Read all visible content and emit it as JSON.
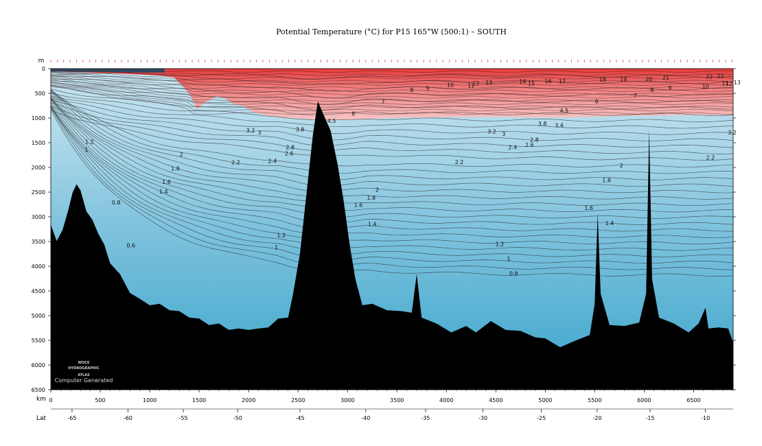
{
  "title": "Potential Temperature (°C) for P15 165°W (500:1) – SOUTH",
  "depth_unit": "m",
  "distance_unit": "km",
  "lat_label": "Lat",
  "watermark": {
    "line1": "WOCE",
    "line2": "HYDROGRAPHIC",
    "line3": "ATLAS",
    "line4": "Computer Generated"
  },
  "chart_data": {
    "type": "heatmap",
    "title": "Potential Temperature (°C) for P15 165°W (500:1) – SOUTH",
    "xlabel": "km",
    "ylabel": "m",
    "xlim": [
      0,
      6900
    ],
    "ylim": [
      6500,
      0
    ],
    "x_ticks": [
      0,
      500,
      1000,
      1500,
      2000,
      2500,
      3000,
      3500,
      4000,
      4500,
      5000,
      5500,
      6000,
      6500
    ],
    "y_ticks": [
      0,
      500,
      1000,
      1500,
      2000,
      2500,
      3000,
      3500,
      4000,
      4500,
      5000,
      5500,
      6000,
      6500
    ],
    "lat_ticks": [
      {
        "label": "-65",
        "km": 215
      },
      {
        "label": "-60",
        "km": 780
      },
      {
        "label": "-55",
        "km": 1340
      },
      {
        "label": "-50",
        "km": 1890
      },
      {
        "label": "-45",
        "km": 2520
      },
      {
        "label": "-40",
        "km": 3185
      },
      {
        "label": "-35",
        "km": 3790
      },
      {
        "label": "-30",
        "km": 4370
      },
      {
        "label": "-25",
        "km": 4960
      },
      {
        "label": "-20",
        "km": 5525
      },
      {
        "label": "-15",
        "km": 6060
      },
      {
        "label": "-10",
        "km": 6620
      }
    ],
    "color_scale": {
      "cold": "#3aa4cb",
      "mid": "#c9e6f2",
      "warm": "#f4b8b8",
      "hot": "#e53a3a",
      "bathymetry": "#000000"
    },
    "contour_labels": [
      {
        "text": "0.6",
        "km": 810,
        "depth": 3620
      },
      {
        "text": "0.8",
        "km": 660,
        "depth": 2750
      },
      {
        "text": "1",
        "km": 360,
        "depth": 1680
      },
      {
        "text": "1.2",
        "km": 390,
        "depth": 1520
      },
      {
        "text": "1.4",
        "km": 1140,
        "depth": 2530
      },
      {
        "text": "1.6",
        "km": 1170,
        "depth": 2330
      },
      {
        "text": "1.8",
        "km": 1260,
        "depth": 2060
      },
      {
        "text": "2",
        "km": 1320,
        "depth": 1780
      },
      {
        "text": "2.2",
        "km": 1870,
        "depth": 1940
      },
      {
        "text": "2.4",
        "km": 2240,
        "depth": 1910
      },
      {
        "text": "2.6",
        "km": 2410,
        "depth": 1760
      },
      {
        "text": "2.8",
        "km": 2420,
        "depth": 1630
      },
      {
        "text": "3",
        "km": 2110,
        "depth": 1330
      },
      {
        "text": "3.2",
        "km": 2020,
        "depth": 1290
      },
      {
        "text": "3.8",
        "km": 2520,
        "depth": 1270
      },
      {
        "text": "4.5",
        "km": 2840,
        "depth": 1100
      },
      {
        "text": "6",
        "km": 3060,
        "depth": 950
      },
      {
        "text": "7",
        "km": 3360,
        "depth": 710
      },
      {
        "text": "8",
        "km": 3650,
        "depth": 470
      },
      {
        "text": "9",
        "km": 3810,
        "depth": 440
      },
      {
        "text": "10",
        "km": 4040,
        "depth": 370
      },
      {
        "text": "11",
        "km": 4250,
        "depth": 380
      },
      {
        "text": "12",
        "km": 4300,
        "depth": 340
      },
      {
        "text": "13",
        "km": 4430,
        "depth": 320
      },
      {
        "text": "14",
        "km": 4770,
        "depth": 300
      },
      {
        "text": "15",
        "km": 4860,
        "depth": 340
      },
      {
        "text": "16",
        "km": 5030,
        "depth": 290
      },
      {
        "text": "17",
        "km": 5170,
        "depth": 300
      },
      {
        "text": "18",
        "km": 5580,
        "depth": 260
      },
      {
        "text": "19",
        "km": 5790,
        "depth": 260
      },
      {
        "text": "20",
        "km": 6050,
        "depth": 250
      },
      {
        "text": "21",
        "km": 6220,
        "depth": 220
      },
      {
        "text": "22",
        "km": 6660,
        "depth": 200
      },
      {
        "text": "23",
        "km": 6770,
        "depth": 190
      },
      {
        "text": "13",
        "km": 6940,
        "depth": 320
      },
      {
        "text": "12",
        "km": 6860,
        "depth": 340
      },
      {
        "text": "11",
        "km": 6820,
        "depth": 330
      },
      {
        "text": "10",
        "km": 6620,
        "depth": 400
      },
      {
        "text": "9",
        "km": 6260,
        "depth": 430
      },
      {
        "text": "8",
        "km": 6080,
        "depth": 470
      },
      {
        "text": "7",
        "km": 5910,
        "depth": 580
      },
      {
        "text": "6",
        "km": 5520,
        "depth": 700
      },
      {
        "text": "4.5",
        "km": 5190,
        "depth": 890
      },
      {
        "text": "3.8",
        "km": 4970,
        "depth": 1150
      },
      {
        "text": "3.4",
        "km": 5140,
        "depth": 1190
      },
      {
        "text": "3.2",
        "km": 4460,
        "depth": 1310
      },
      {
        "text": "3",
        "km": 4580,
        "depth": 1360
      },
      {
        "text": "2.8",
        "km": 4890,
        "depth": 1480
      },
      {
        "text": "2.6",
        "km": 4840,
        "depth": 1580
      },
      {
        "text": "2.4",
        "km": 4670,
        "depth": 1630
      },
      {
        "text": "2.2",
        "km": 4130,
        "depth": 1930
      },
      {
        "text": "2",
        "km": 3300,
        "depth": 2490
      },
      {
        "text": "1.8",
        "km": 3240,
        "depth": 2650
      },
      {
        "text": "1.6",
        "km": 3110,
        "depth": 2800
      },
      {
        "text": "1.4",
        "km": 3250,
        "depth": 3190
      },
      {
        "text": "1.2",
        "km": 2330,
        "depth": 3410
      },
      {
        "text": "1",
        "km": 2280,
        "depth": 3660
      },
      {
        "text": "1.2",
        "km": 4540,
        "depth": 3590
      },
      {
        "text": "1",
        "km": 4630,
        "depth": 3890
      },
      {
        "text": "0.8",
        "km": 4680,
        "depth": 4190
      },
      {
        "text": "2",
        "km": 5770,
        "depth": 2000
      },
      {
        "text": "1.8",
        "km": 5620,
        "depth": 2300
      },
      {
        "text": "1.6",
        "km": 5440,
        "depth": 2860
      },
      {
        "text": "1.4",
        "km": 5650,
        "depth": 3170
      },
      {
        "text": "2.2",
        "km": 6670,
        "depth": 1840
      },
      {
        "text": "3.2",
        "km": 6890,
        "depth": 1330
      }
    ],
    "bathymetry": [
      [
        0,
        3200
      ],
      [
        60,
        3450
      ],
      [
        120,
        3300
      ],
      [
        180,
        2800
      ],
      [
        220,
        2550
      ],
      [
        260,
        2300
      ],
      [
        300,
        2500
      ],
      [
        360,
        2850
      ],
      [
        420,
        3100
      ],
      [
        480,
        3300
      ],
      [
        540,
        3600
      ],
      [
        600,
        3900
      ],
      [
        700,
        4200
      ],
      [
        800,
        4500
      ],
      [
        900,
        4700
      ],
      [
        1000,
        4750
      ],
      [
        1100,
        4800
      ],
      [
        1200,
        4850
      ],
      [
        1300,
        4950
      ],
      [
        1400,
        5000
      ],
      [
        1500,
        5100
      ],
      [
        1600,
        5150
      ],
      [
        1700,
        5200
      ],
      [
        1800,
        5250
      ],
      [
        1900,
        5300
      ],
      [
        2000,
        5250
      ],
      [
        2100,
        5300
      ],
      [
        2200,
        5200
      ],
      [
        2300,
        5100
      ],
      [
        2400,
        5000
      ],
      [
        2450,
        4600
      ],
      [
        2520,
        3700
      ],
      [
        2600,
        2300
      ],
      [
        2650,
        1300
      ],
      [
        2700,
        700
      ],
      [
        2760,
        900
      ],
      [
        2830,
        1300
      ],
      [
        2900,
        1900
      ],
      [
        2960,
        2700
      ],
      [
        3020,
        3500
      ],
      [
        3080,
        4300
      ],
      [
        3150,
        4750
      ],
      [
        3250,
        4800
      ],
      [
        3400,
        4850
      ],
      [
        3550,
        4950
      ],
      [
        3650,
        4900
      ],
      [
        3700,
        4200
      ],
      [
        3750,
        5000
      ],
      [
        3900,
        5200
      ],
      [
        4050,
        5300
      ],
      [
        4200,
        5250
      ],
      [
        4300,
        5300
      ],
      [
        4450,
        5150
      ],
      [
        4600,
        5250
      ],
      [
        4750,
        5350
      ],
      [
        4900,
        5400
      ],
      [
        5000,
        5500
      ],
      [
        5150,
        5600
      ],
      [
        5300,
        5550
      ],
      [
        5450,
        5350
      ],
      [
        5500,
        4800
      ],
      [
        5530,
        2900
      ],
      [
        5560,
        4600
      ],
      [
        5650,
        5150
      ],
      [
        5800,
        5250
      ],
      [
        5950,
        5100
      ],
      [
        6020,
        4600
      ],
      [
        6050,
        1200
      ],
      [
        6080,
        4300
      ],
      [
        6150,
        5000
      ],
      [
        6300,
        5200
      ],
      [
        6450,
        5300
      ],
      [
        6550,
        5200
      ],
      [
        6620,
        4800
      ],
      [
        6650,
        5300
      ],
      [
        6750,
        5200
      ],
      [
        6850,
        5300
      ],
      [
        6900,
        5500
      ]
    ]
  }
}
